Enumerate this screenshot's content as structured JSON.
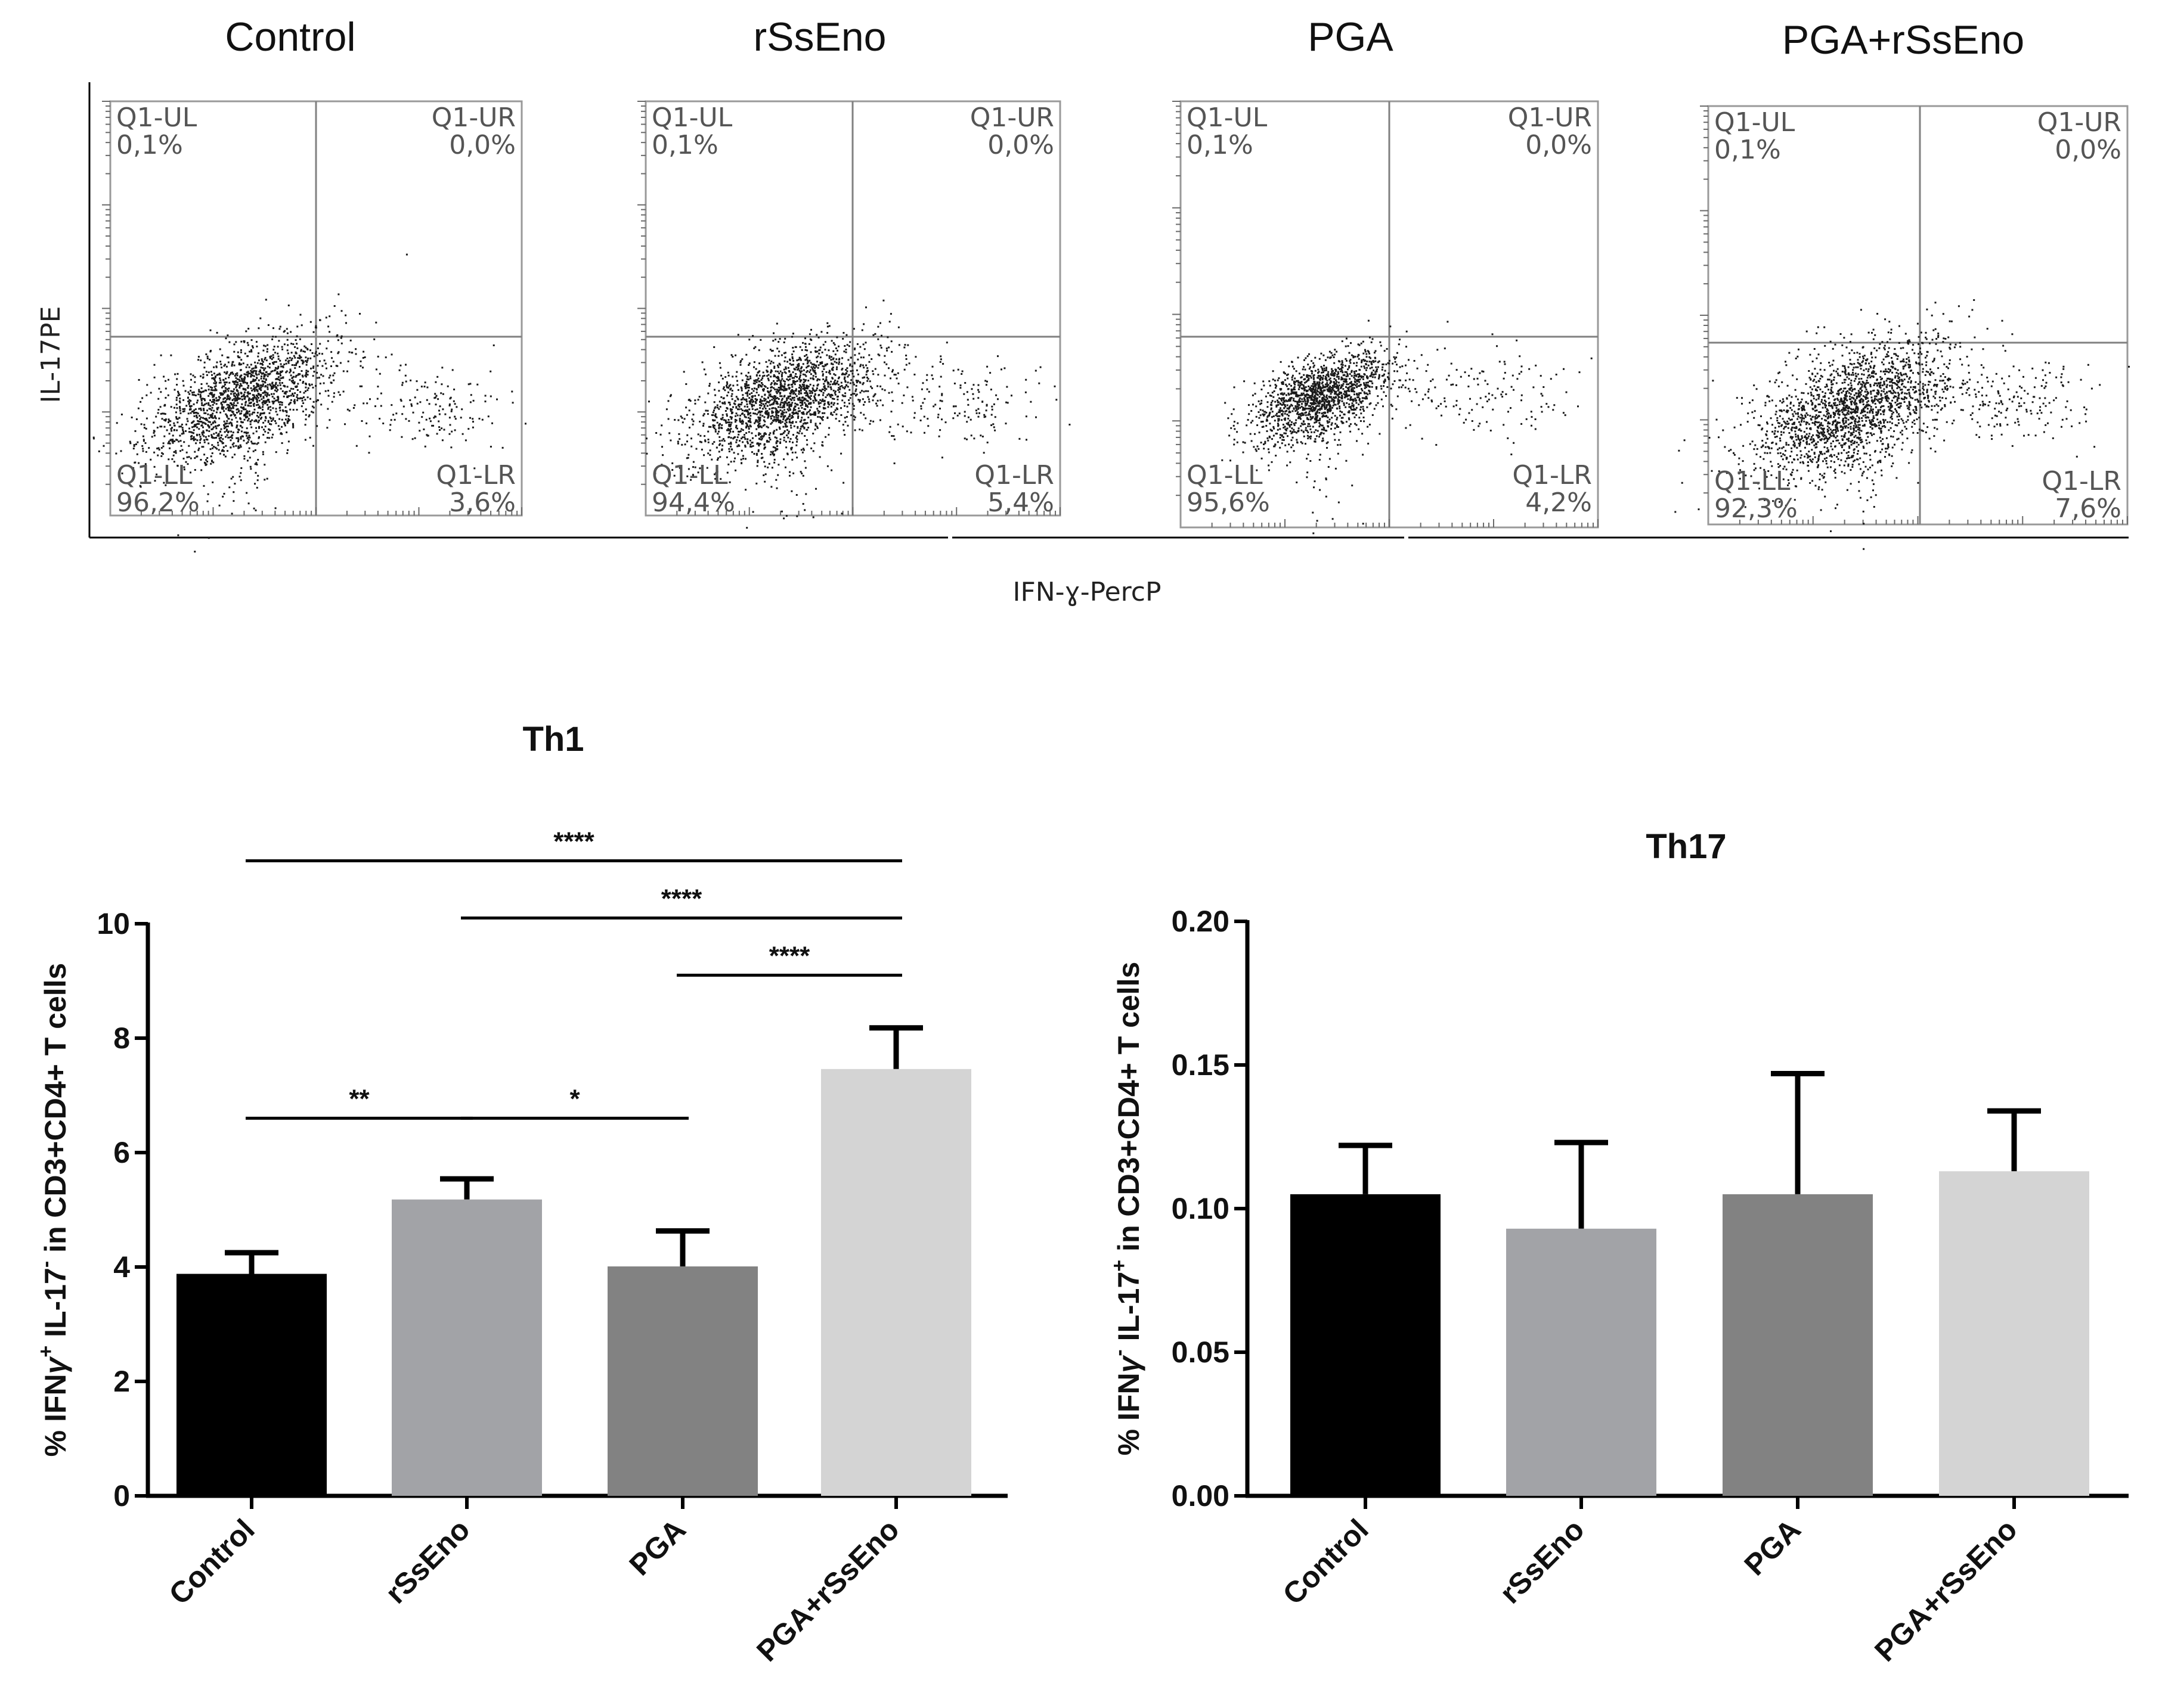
{
  "flow_panels": [
    {
      "title": "Control",
      "quadrants": {
        "ul_name": "Q1-UL",
        "ul_value": "0,1%",
        "ur_name": "Q1-UR",
        "ur_value": "0,0%",
        "ll_name": "Q1-LL",
        "ll_value": "96,2%",
        "lr_name": "Q1-LR",
        "lr_value": "3,6%"
      }
    },
    {
      "title": "rSsEno",
      "quadrants": {
        "ul_name": "Q1-UL",
        "ul_value": "0,1%",
        "ur_name": "Q1-UR",
        "ur_value": "0,0%",
        "ll_name": "Q1-LL",
        "ll_value": "94,4%",
        "lr_name": "Q1-LR",
        "lr_value": "5,4%"
      }
    },
    {
      "title": "PGA",
      "quadrants": {
        "ul_name": "Q1-UL",
        "ul_value": "0,1%",
        "ur_name": "Q1-UR",
        "ur_value": "0,0%",
        "ll_name": "Q1-LL",
        "ll_value": "95,6%",
        "lr_name": "Q1-LR",
        "lr_value": "4,2%"
      }
    },
    {
      "title": "PGA+rSsEno",
      "quadrants": {
        "ul_name": "Q1-UL",
        "ul_value": "0,1%",
        "ur_name": "Q1-UR",
        "ur_value": "0,0%",
        "ll_name": "Q1-LL",
        "ll_value": "92,3%",
        "lr_name": "Q1-LR",
        "lr_value": "7,6%"
      }
    }
  ],
  "flow_axes": {
    "ylabel": "IL-17PE",
    "xlabel": "IFN-ɣ-PercP"
  },
  "colors": {
    "control": "#000000",
    "rssen": "#a2a3a7",
    "pga": "#828282",
    "pga_rssen": "#d4d4d4",
    "axis": "#000000",
    "gate_line": "#808080",
    "dots": "#1a1a1a"
  },
  "chart_data": [
    {
      "type": "bar",
      "title": "Th1",
      "categories": [
        "Control",
        "rSsEno",
        "PGA",
        "PGA+rSsEno"
      ],
      "values": [
        3.88,
        5.18,
        4.01,
        7.46
      ],
      "errors": [
        0.37,
        0.36,
        0.62,
        0.72
      ],
      "ylim": [
        0,
        10
      ],
      "yticks": [
        "0",
        "2",
        "4",
        "6",
        "8",
        "10"
      ],
      "ylabel_parts": [
        "% IFN",
        "γ",
        "+",
        " IL-17",
        "-",
        " in CD3+CD4+ T cells"
      ],
      "significance": [
        {
          "from": 0,
          "to": 3,
          "label": "****",
          "y": 11.1
        },
        {
          "from": 1,
          "to": 3,
          "label": "****",
          "y": 10.1
        },
        {
          "from": 2,
          "to": 3,
          "label": "****",
          "y": 9.1
        },
        {
          "from": 0,
          "to": 1,
          "label": "**",
          "y": 6.6
        },
        {
          "from": 1,
          "to": 2,
          "label": "*",
          "y": 6.6
        }
      ]
    },
    {
      "type": "bar",
      "title": "Th17",
      "categories": [
        "Control",
        "rSsEno",
        "PGA",
        "PGA+rSsEno"
      ],
      "values": [
        0.105,
        0.093,
        0.105,
        0.113
      ],
      "errors": [
        0.017,
        0.03,
        0.042,
        0.021
      ],
      "ylim": [
        0,
        0.2
      ],
      "yticks": [
        "0.00",
        "0.05",
        "0.10",
        "0.15",
        "0.20"
      ],
      "ylabel_parts": [
        "% IFN",
        "γ",
        "-",
        " IL-17",
        "+",
        " in CD3+CD4+ T cells"
      ],
      "significance": []
    }
  ]
}
